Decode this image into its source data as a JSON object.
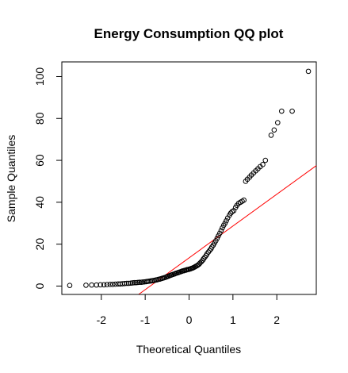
{
  "chart_data": {
    "type": "scatter",
    "title": "Energy Consumption QQ plot",
    "xlabel": "Theoretical Quantiles",
    "ylabel": "Sample Quantiles",
    "xlim": [
      -2.9,
      2.9
    ],
    "ylim": [
      -4,
      107
    ],
    "x_ticks": [
      -2,
      -1,
      0,
      1,
      2
    ],
    "x_tick_labels": [
      "-2",
      "-1",
      "0",
      "1",
      "2"
    ],
    "y_ticks": [
      0,
      20,
      40,
      60,
      80,
      100
    ],
    "y_tick_labels": [
      "0",
      "20",
      "40",
      "60",
      "80",
      "100"
    ],
    "grid": false,
    "legend": "none",
    "point_color": "#000000",
    "reference_line": {
      "color": "#ff0000",
      "x1": -1.15,
      "y1": -4,
      "x2": 2.9,
      "y2": 57.5
    },
    "points": [
      [
        -2.72,
        0.3
      ],
      [
        -2.35,
        0.4
      ],
      [
        -2.22,
        0.5
      ],
      [
        -2.11,
        0.5
      ],
      [
        -2.02,
        0.6
      ],
      [
        -1.94,
        0.6
      ],
      [
        -1.87,
        0.7
      ],
      [
        -1.8,
        0.8
      ],
      [
        -1.74,
        0.8
      ],
      [
        -1.68,
        0.9
      ],
      [
        -1.62,
        1.0
      ],
      [
        -1.57,
        1.0
      ],
      [
        -1.52,
        1.1
      ],
      [
        -1.47,
        1.2
      ],
      [
        -1.42,
        1.3
      ],
      [
        -1.38,
        1.3
      ],
      [
        -1.33,
        1.4
      ],
      [
        -1.29,
        1.5
      ],
      [
        -1.25,
        1.6
      ],
      [
        -1.21,
        1.6
      ],
      [
        -1.17,
        1.7
      ],
      [
        -1.13,
        1.8
      ],
      [
        -1.09,
        1.8
      ],
      [
        -1.06,
        1.9
      ],
      [
        -1.02,
        2.0
      ],
      [
        -0.98,
        2.1
      ],
      [
        -0.95,
        2.2
      ],
      [
        -0.92,
        2.3
      ],
      [
        -0.88,
        2.4
      ],
      [
        -0.85,
        2.5
      ],
      [
        -0.82,
        2.6
      ],
      [
        -0.79,
        2.7
      ],
      [
        -0.76,
        2.9
      ],
      [
        -0.73,
        3.0
      ],
      [
        -0.7,
        3.2
      ],
      [
        -0.67,
        3.3
      ],
      [
        -0.64,
        3.5
      ],
      [
        -0.61,
        3.7
      ],
      [
        -0.58,
        3.9
      ],
      [
        -0.55,
        4.1
      ],
      [
        -0.52,
        4.3
      ],
      [
        -0.5,
        4.5
      ],
      [
        -0.47,
        4.7
      ],
      [
        -0.44,
        5.0
      ],
      [
        -0.41,
        5.2
      ],
      [
        -0.39,
        5.4
      ],
      [
        -0.36,
        5.6
      ],
      [
        -0.33,
        5.8
      ],
      [
        -0.31,
        6.0
      ],
      [
        -0.28,
        6.2
      ],
      [
        -0.25,
        6.4
      ],
      [
        -0.23,
        6.6
      ],
      [
        -0.2,
        6.8
      ],
      [
        -0.17,
        7.0
      ],
      [
        -0.15,
        7.2
      ],
      [
        -0.12,
        7.3
      ],
      [
        -0.1,
        7.5
      ],
      [
        -0.07,
        7.6
      ],
      [
        -0.05,
        7.8
      ],
      [
        -0.02,
        7.9
      ],
      [
        0.0,
        8.0
      ],
      [
        0.03,
        8.2
      ],
      [
        0.05,
        8.4
      ],
      [
        0.08,
        8.6
      ],
      [
        0.1,
        8.8
      ],
      [
        0.13,
        9.1
      ],
      [
        0.15,
        9.4
      ],
      [
        0.18,
        9.7
      ],
      [
        0.2,
        10.0
      ],
      [
        0.23,
        10.5
      ],
      [
        0.25,
        11.0
      ],
      [
        0.28,
        11.6
      ],
      [
        0.31,
        12.3
      ],
      [
        0.33,
        13.0
      ],
      [
        0.36,
        13.8
      ],
      [
        0.39,
        14.6
      ],
      [
        0.41,
        15.4
      ],
      [
        0.44,
        16.2
      ],
      [
        0.47,
        17.0
      ],
      [
        0.5,
        17.8
      ],
      [
        0.52,
        18.6
      ],
      [
        0.55,
        19.5
      ],
      [
        0.58,
        20.5
      ],
      [
        0.61,
        21.6
      ],
      [
        0.64,
        22.8
      ],
      [
        0.67,
        24.0
      ],
      [
        0.7,
        25.2
      ],
      [
        0.73,
        26.5
      ],
      [
        0.76,
        27.8
      ],
      [
        0.79,
        29.0
      ],
      [
        0.82,
        30.0
      ],
      [
        0.85,
        31.2
      ],
      [
        0.88,
        32.5
      ],
      [
        0.92,
        33.8
      ],
      [
        0.95,
        34.8
      ],
      [
        0.98,
        35.5
      ],
      [
        1.02,
        36.0
      ],
      [
        1.06,
        37.5
      ],
      [
        1.09,
        38.5
      ],
      [
        1.13,
        39.5
      ],
      [
        1.17,
        40.0
      ],
      [
        1.21,
        40.5
      ],
      [
        1.25,
        41.0
      ],
      [
        1.29,
        50.0
      ],
      [
        1.33,
        51.0
      ],
      [
        1.38,
        52.0
      ],
      [
        1.42,
        53.0
      ],
      [
        1.47,
        54.0
      ],
      [
        1.52,
        55.0
      ],
      [
        1.57,
        56.0
      ],
      [
        1.62,
        57.0
      ],
      [
        1.68,
        58.0
      ],
      [
        1.74,
        60.0
      ],
      [
        1.87,
        72.0
      ],
      [
        1.94,
        74.5
      ],
      [
        2.02,
        78.0
      ],
      [
        2.11,
        83.5
      ],
      [
        2.35,
        83.5
      ],
      [
        2.72,
        102.5
      ]
    ]
  }
}
